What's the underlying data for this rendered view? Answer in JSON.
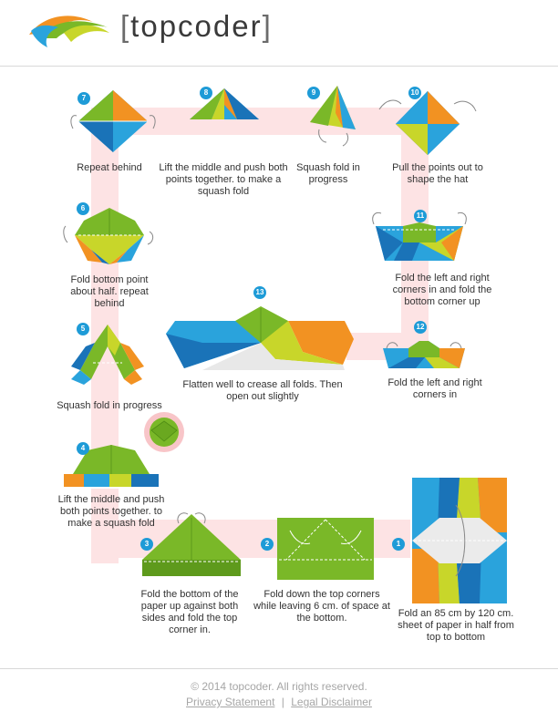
{
  "brand": {
    "name": "topcoder",
    "bracket_open": "[",
    "bracket_close": "]"
  },
  "steps": [
    {
      "num": "1",
      "text": "Fold an 85 cm by 120 cm. sheet of paper in half from top to bottom"
    },
    {
      "num": "2",
      "text": "Fold down the top corners while leaving 6 cm. of space at the bottom."
    },
    {
      "num": "3",
      "text": "Fold the bottom of the paper up against both sides and fold the top corner in."
    },
    {
      "num": "4",
      "text": "Lift the middle and push both points together. to make a squash fold"
    },
    {
      "num": "5",
      "text": "Squash fold in progress"
    },
    {
      "num": "6",
      "text": "Fold bottom point about half. repeat behind"
    },
    {
      "num": "7",
      "text": "Repeat behind"
    },
    {
      "num": "8",
      "text": "Lift the middle and push both points together. to make a squash fold"
    },
    {
      "num": "9",
      "text": "Squash fold in progress"
    },
    {
      "num": "10",
      "text": "Pull the points out to shape the hat"
    },
    {
      "num": "11",
      "text": "Fold the left and right corners in and fold the bottom corner up"
    },
    {
      "num": "12",
      "text": "Fold the left and right corners in"
    },
    {
      "num": "13",
      "text": "Flatten well to crease all folds. Then open out slightly"
    }
  ],
  "footer": {
    "copyright": "© 2014 topcoder. All rights reserved.",
    "privacy": "Privacy Statement",
    "separator": "|",
    "legal": "Legal Disclaimer"
  },
  "colors": {
    "green": "#7ab828",
    "lime": "#c8d62a",
    "blue": "#2aa3dc",
    "darkblue": "#1a73b8",
    "orange": "#f29222",
    "path": "#fde3e4",
    "badge": "#1e9bd7"
  }
}
